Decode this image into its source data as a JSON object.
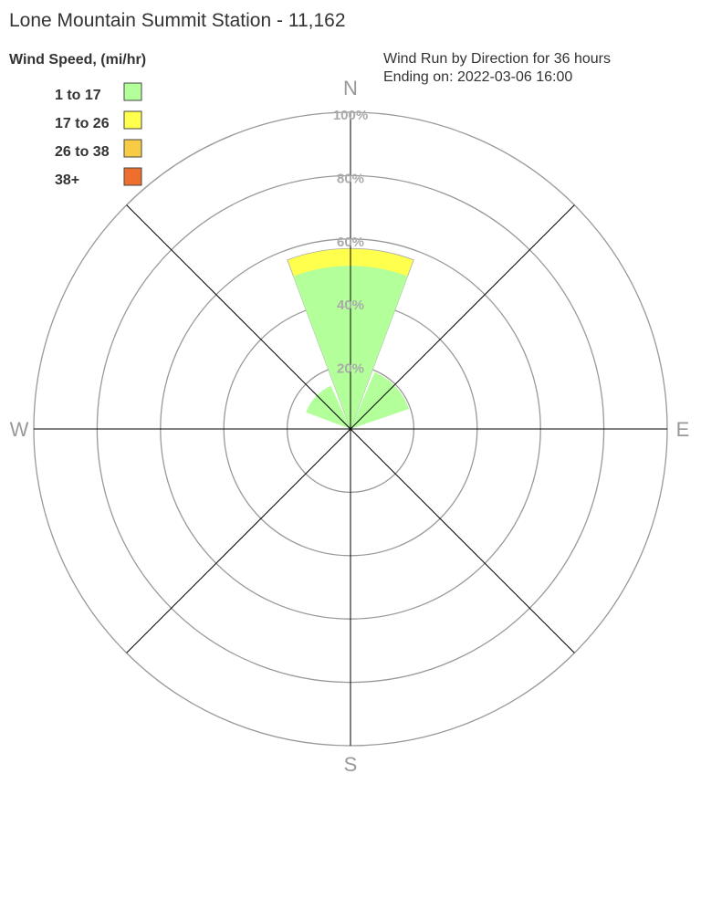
{
  "chart_data": {
    "type": "wind-rose",
    "title": "Lone Mountain Summit Station - 11,162",
    "legend_title": "Wind Speed, (mi/hr)",
    "subtitle_lines": [
      "Wind Run by Direction for 36 hours",
      "Ending on: 2022-03-06 16:00"
    ],
    "legend_placement": "top-left",
    "compass_labels": [
      "N",
      "E",
      "S",
      "W"
    ],
    "radial_ticks": [
      "20%",
      "40%",
      "60%",
      "80%",
      "100%"
    ],
    "rlim": [
      0,
      100
    ],
    "bins": [
      {
        "label": "1 to 17",
        "color": "#b3ff99"
      },
      {
        "label": "17 to 26",
        "color": "#ffff4d"
      },
      {
        "label": "26 to 38",
        "color": "#f7cc44"
      },
      {
        "label": "38+",
        "color": "#ee6f2d"
      }
    ],
    "directions": [
      {
        "dir": "N",
        "values": [
          51.5,
          5.5,
          0,
          0
        ]
      },
      {
        "dir": "NE",
        "values": [
          19.5,
          0,
          0,
          0
        ]
      },
      {
        "dir": "NW",
        "values": [
          15,
          0,
          0,
          0
        ]
      }
    ]
  }
}
